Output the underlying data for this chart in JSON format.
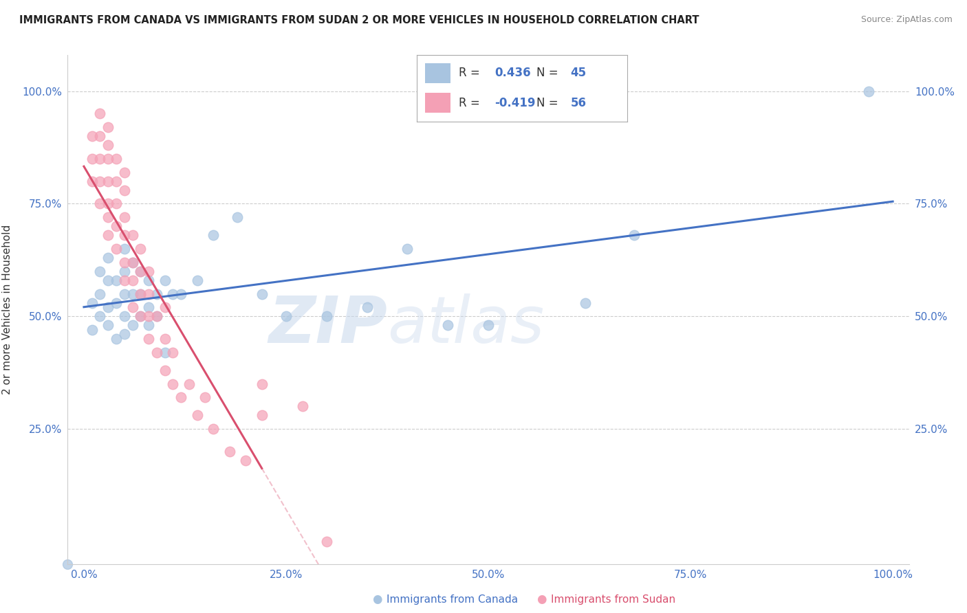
{
  "title": "IMMIGRANTS FROM CANADA VS IMMIGRANTS FROM SUDAN 2 OR MORE VEHICLES IN HOUSEHOLD CORRELATION CHART",
  "source": "Source: ZipAtlas.com",
  "ylabel": "2 or more Vehicles in Household",
  "x_tick_labels": [
    "0.0%",
    "25.0%",
    "50.0%",
    "75.0%",
    "100.0%"
  ],
  "x_tick_vals": [
    0,
    25,
    50,
    75,
    100
  ],
  "y_tick_labels": [
    "25.0%",
    "50.0%",
    "75.0%",
    "100.0%"
  ],
  "y_tick_vals": [
    25,
    50,
    75,
    100
  ],
  "xlim": [
    -2,
    102
  ],
  "ylim": [
    -5,
    108
  ],
  "canada_R": 0.436,
  "canada_N": 45,
  "sudan_R": -0.419,
  "sudan_N": 56,
  "canada_color": "#a8c4e0",
  "sudan_color": "#f4a0b5",
  "canada_line_color": "#4472c4",
  "sudan_line_color": "#d94f6e",
  "sudan_line_dash": "#e8a0b0",
  "watermark_zip": "ZIP",
  "watermark_atlas": "atlas",
  "canada_scatter_x": [
    1,
    1,
    2,
    2,
    2,
    3,
    3,
    3,
    3,
    4,
    4,
    4,
    5,
    5,
    5,
    5,
    5,
    6,
    6,
    6,
    7,
    7,
    7,
    8,
    8,
    8,
    9,
    9,
    10,
    10,
    11,
    12,
    14,
    16,
    19,
    22,
    25,
    30,
    35,
    40,
    45,
    50,
    62,
    68,
    97
  ],
  "canada_scatter_y": [
    47,
    53,
    50,
    55,
    60,
    48,
    52,
    58,
    63,
    45,
    53,
    58,
    46,
    50,
    55,
    60,
    65,
    48,
    55,
    62,
    50,
    55,
    60,
    48,
    52,
    58,
    50,
    55,
    42,
    58,
    55,
    55,
    58,
    68,
    72,
    55,
    50,
    50,
    52,
    65,
    48,
    48,
    53,
    68,
    100
  ],
  "sudan_scatter_x": [
    1,
    1,
    1,
    2,
    2,
    2,
    2,
    2,
    3,
    3,
    3,
    3,
    3,
    3,
    3,
    4,
    4,
    4,
    4,
    4,
    5,
    5,
    5,
    5,
    5,
    5,
    6,
    6,
    6,
    6,
    7,
    7,
    7,
    7,
    8,
    8,
    8,
    8,
    9,
    9,
    10,
    10,
    10,
    11,
    11,
    12,
    13,
    14,
    15,
    16,
    18,
    20,
    22,
    22,
    27,
    30
  ],
  "sudan_scatter_y": [
    80,
    85,
    90,
    75,
    80,
    85,
    90,
    95,
    68,
    72,
    75,
    80,
    85,
    88,
    92,
    65,
    70,
    75,
    80,
    85,
    58,
    62,
    68,
    72,
    78,
    82,
    52,
    58,
    62,
    68,
    50,
    55,
    60,
    65,
    45,
    50,
    55,
    60,
    42,
    50,
    38,
    45,
    52,
    35,
    42,
    32,
    35,
    28,
    32,
    25,
    20,
    18,
    28,
    35,
    30,
    0
  ]
}
